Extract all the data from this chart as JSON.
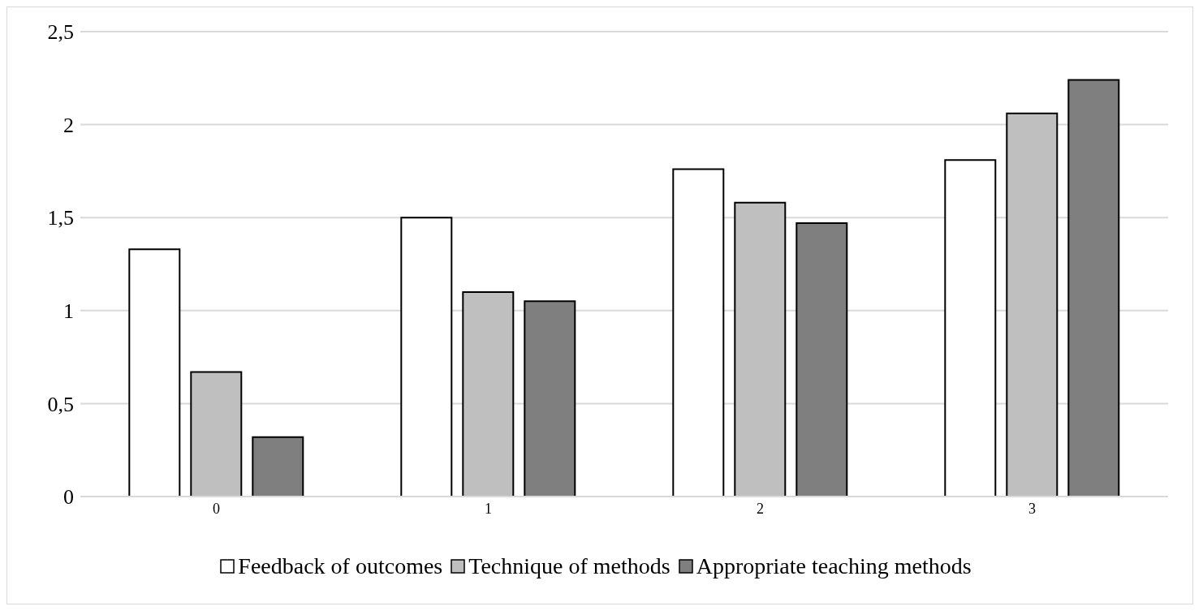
{
  "chart_data": {
    "type": "bar",
    "categories": [
      "0",
      "1",
      "2",
      "3"
    ],
    "series": [
      {
        "name": "Feedback of outcomes",
        "color": "#ffffff",
        "values": [
          1.33,
          1.5,
          1.76,
          1.81
        ]
      },
      {
        "name": "Technique of methods",
        "color": "#bfbfbf",
        "values": [
          0.67,
          1.1,
          1.58,
          2.06
        ]
      },
      {
        "name": "Appropriate teaching methods",
        "color": "#7f7f7f",
        "values": [
          0.32,
          1.05,
          1.47,
          2.24
        ]
      }
    ],
    "ylim": [
      0,
      2.5
    ],
    "yticks": [
      0,
      {
        "value": 0.5,
        "label": "0,5"
      },
      1,
      {
        "value": 1.5,
        "label": "1,5"
      },
      2,
      {
        "value": 2.5,
        "label": "2,5"
      }
    ],
    "grid": "y",
    "legend": "bottom"
  }
}
